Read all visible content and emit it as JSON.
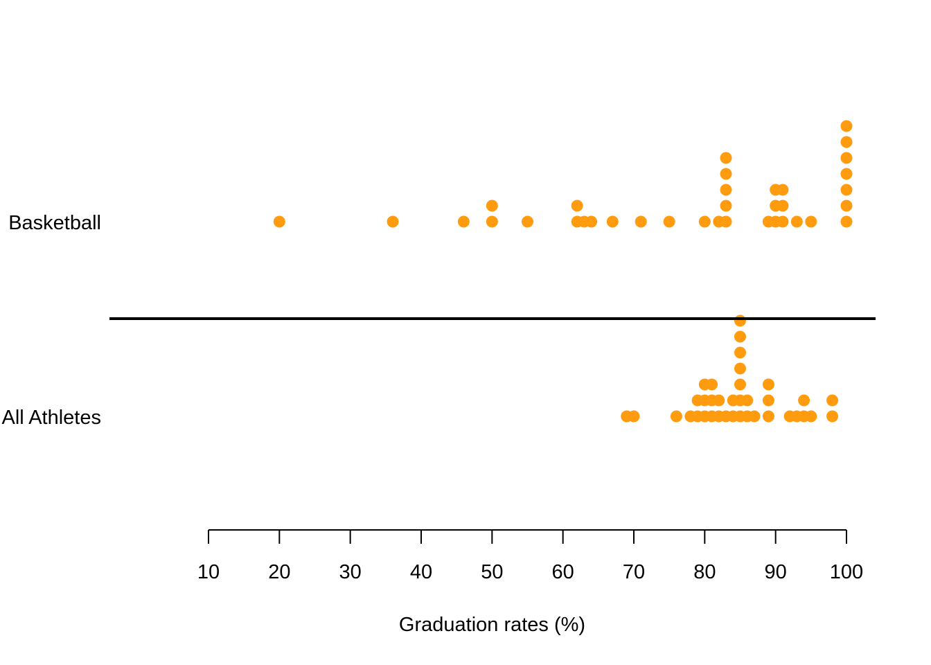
{
  "chart_data": {
    "type": "scatter",
    "subtype": "stacked dot plot",
    "xlabel": "Graduation rates (%)",
    "xlim": [
      10,
      100
    ],
    "xticks": [
      10,
      20,
      30,
      40,
      50,
      60,
      70,
      80,
      90,
      100
    ],
    "point_color": "#FF9B0F",
    "series": [
      {
        "name": "Basketball",
        "values": [
          20,
          36,
          46,
          50,
          50,
          55,
          62,
          62,
          63,
          64,
          67,
          71,
          75,
          80,
          82,
          83,
          83,
          83,
          83,
          83,
          89,
          90,
          90,
          90,
          91,
          91,
          91,
          93,
          95,
          100,
          100,
          100,
          100,
          100,
          100,
          100
        ]
      },
      {
        "name": "All Athletes",
        "values": [
          69,
          70,
          76,
          78,
          79,
          79,
          80,
          80,
          80,
          81,
          81,
          81,
          82,
          82,
          83,
          84,
          84,
          85,
          85,
          85,
          85,
          85,
          85,
          85,
          86,
          86,
          87,
          89,
          89,
          89,
          92,
          93,
          94,
          94,
          95,
          98,
          98
        ]
      }
    ]
  }
}
